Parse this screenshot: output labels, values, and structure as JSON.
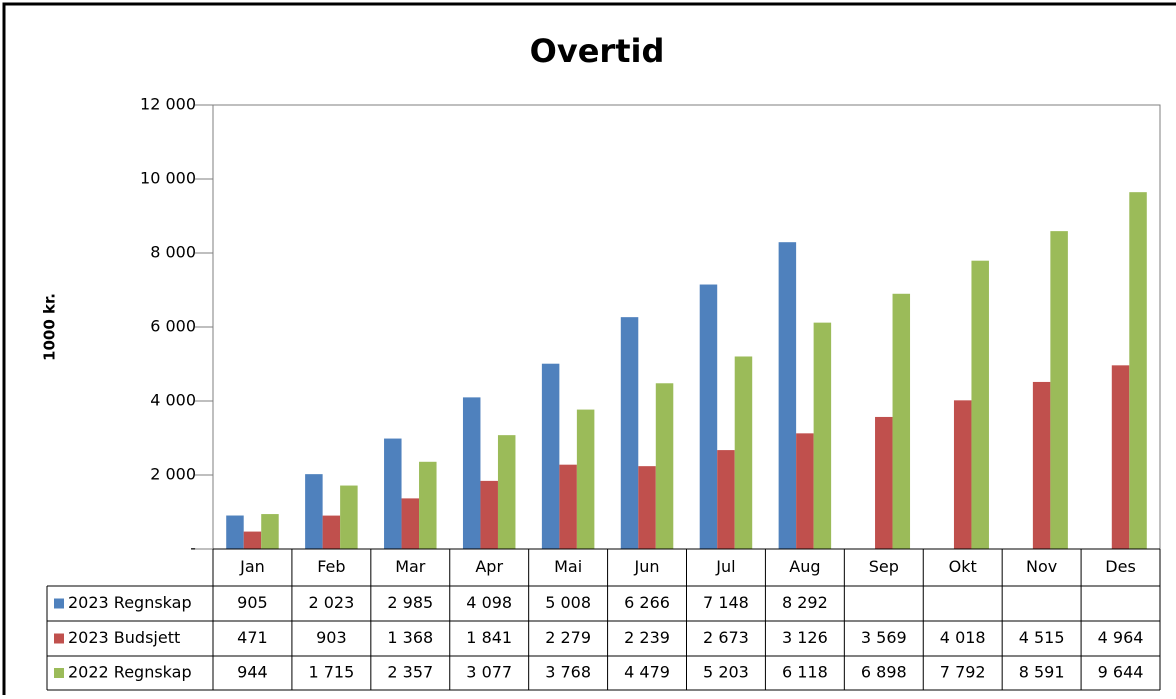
{
  "chart_data": {
    "type": "bar",
    "title": "Overtid",
    "y_label": "1000 kr.",
    "categories": [
      "Jan",
      "Feb",
      "Mar",
      "Apr",
      "Mai",
      "Jun",
      "Jul",
      "Aug",
      "Sep",
      "Okt",
      "Nov",
      "Des"
    ],
    "series": [
      {
        "name": "2023 Regnskap",
        "color": "#4f81bd",
        "values": [
          905,
          2023,
          2985,
          4098,
          5008,
          6266,
          7148,
          8292,
          null,
          null,
          null,
          null
        ],
        "value_labels": [
          "905",
          "2 023",
          "2 985",
          "4 098",
          "5 008",
          "6 266",
          "7 148",
          "8 292",
          null,
          null,
          null,
          null
        ]
      },
      {
        "name": "2023 Budsjett",
        "color": "#c0504d",
        "values": [
          471,
          903,
          1368,
          1841,
          2279,
          2239,
          2673,
          3126,
          3569,
          4018,
          4515,
          4964
        ],
        "value_labels": [
          "471",
          "903",
          "1 368",
          "1 841",
          "2 279",
          "2 239",
          "2 673",
          "3 126",
          "3 569",
          "4 018",
          "4 515",
          "4 964"
        ]
      },
      {
        "name": "2022 Regnskap",
        "color": "#9bbb59",
        "values": [
          944,
          1715,
          2357,
          3077,
          3768,
          4479,
          5203,
          6118,
          6898,
          7792,
          8591,
          9644
        ],
        "value_labels": [
          "944",
          "1 715",
          "2 357",
          "3 077",
          "3 768",
          "4 479",
          "5 203",
          "6 118",
          "6 898",
          "7 792",
          "8 591",
          "9 644"
        ]
      }
    ],
    "ylim": [
      0,
      12000
    ],
    "yticks": [
      {
        "value": 0,
        "label": "-"
      },
      {
        "value": 2000,
        "label": "2 000"
      },
      {
        "value": 4000,
        "label": "4 000"
      },
      {
        "value": 6000,
        "label": "6 000"
      },
      {
        "value": 8000,
        "label": "8 000"
      },
      {
        "value": 10000,
        "label": "10 000"
      },
      {
        "value": 12000,
        "label": "12 000"
      }
    ],
    "grid": false
  }
}
